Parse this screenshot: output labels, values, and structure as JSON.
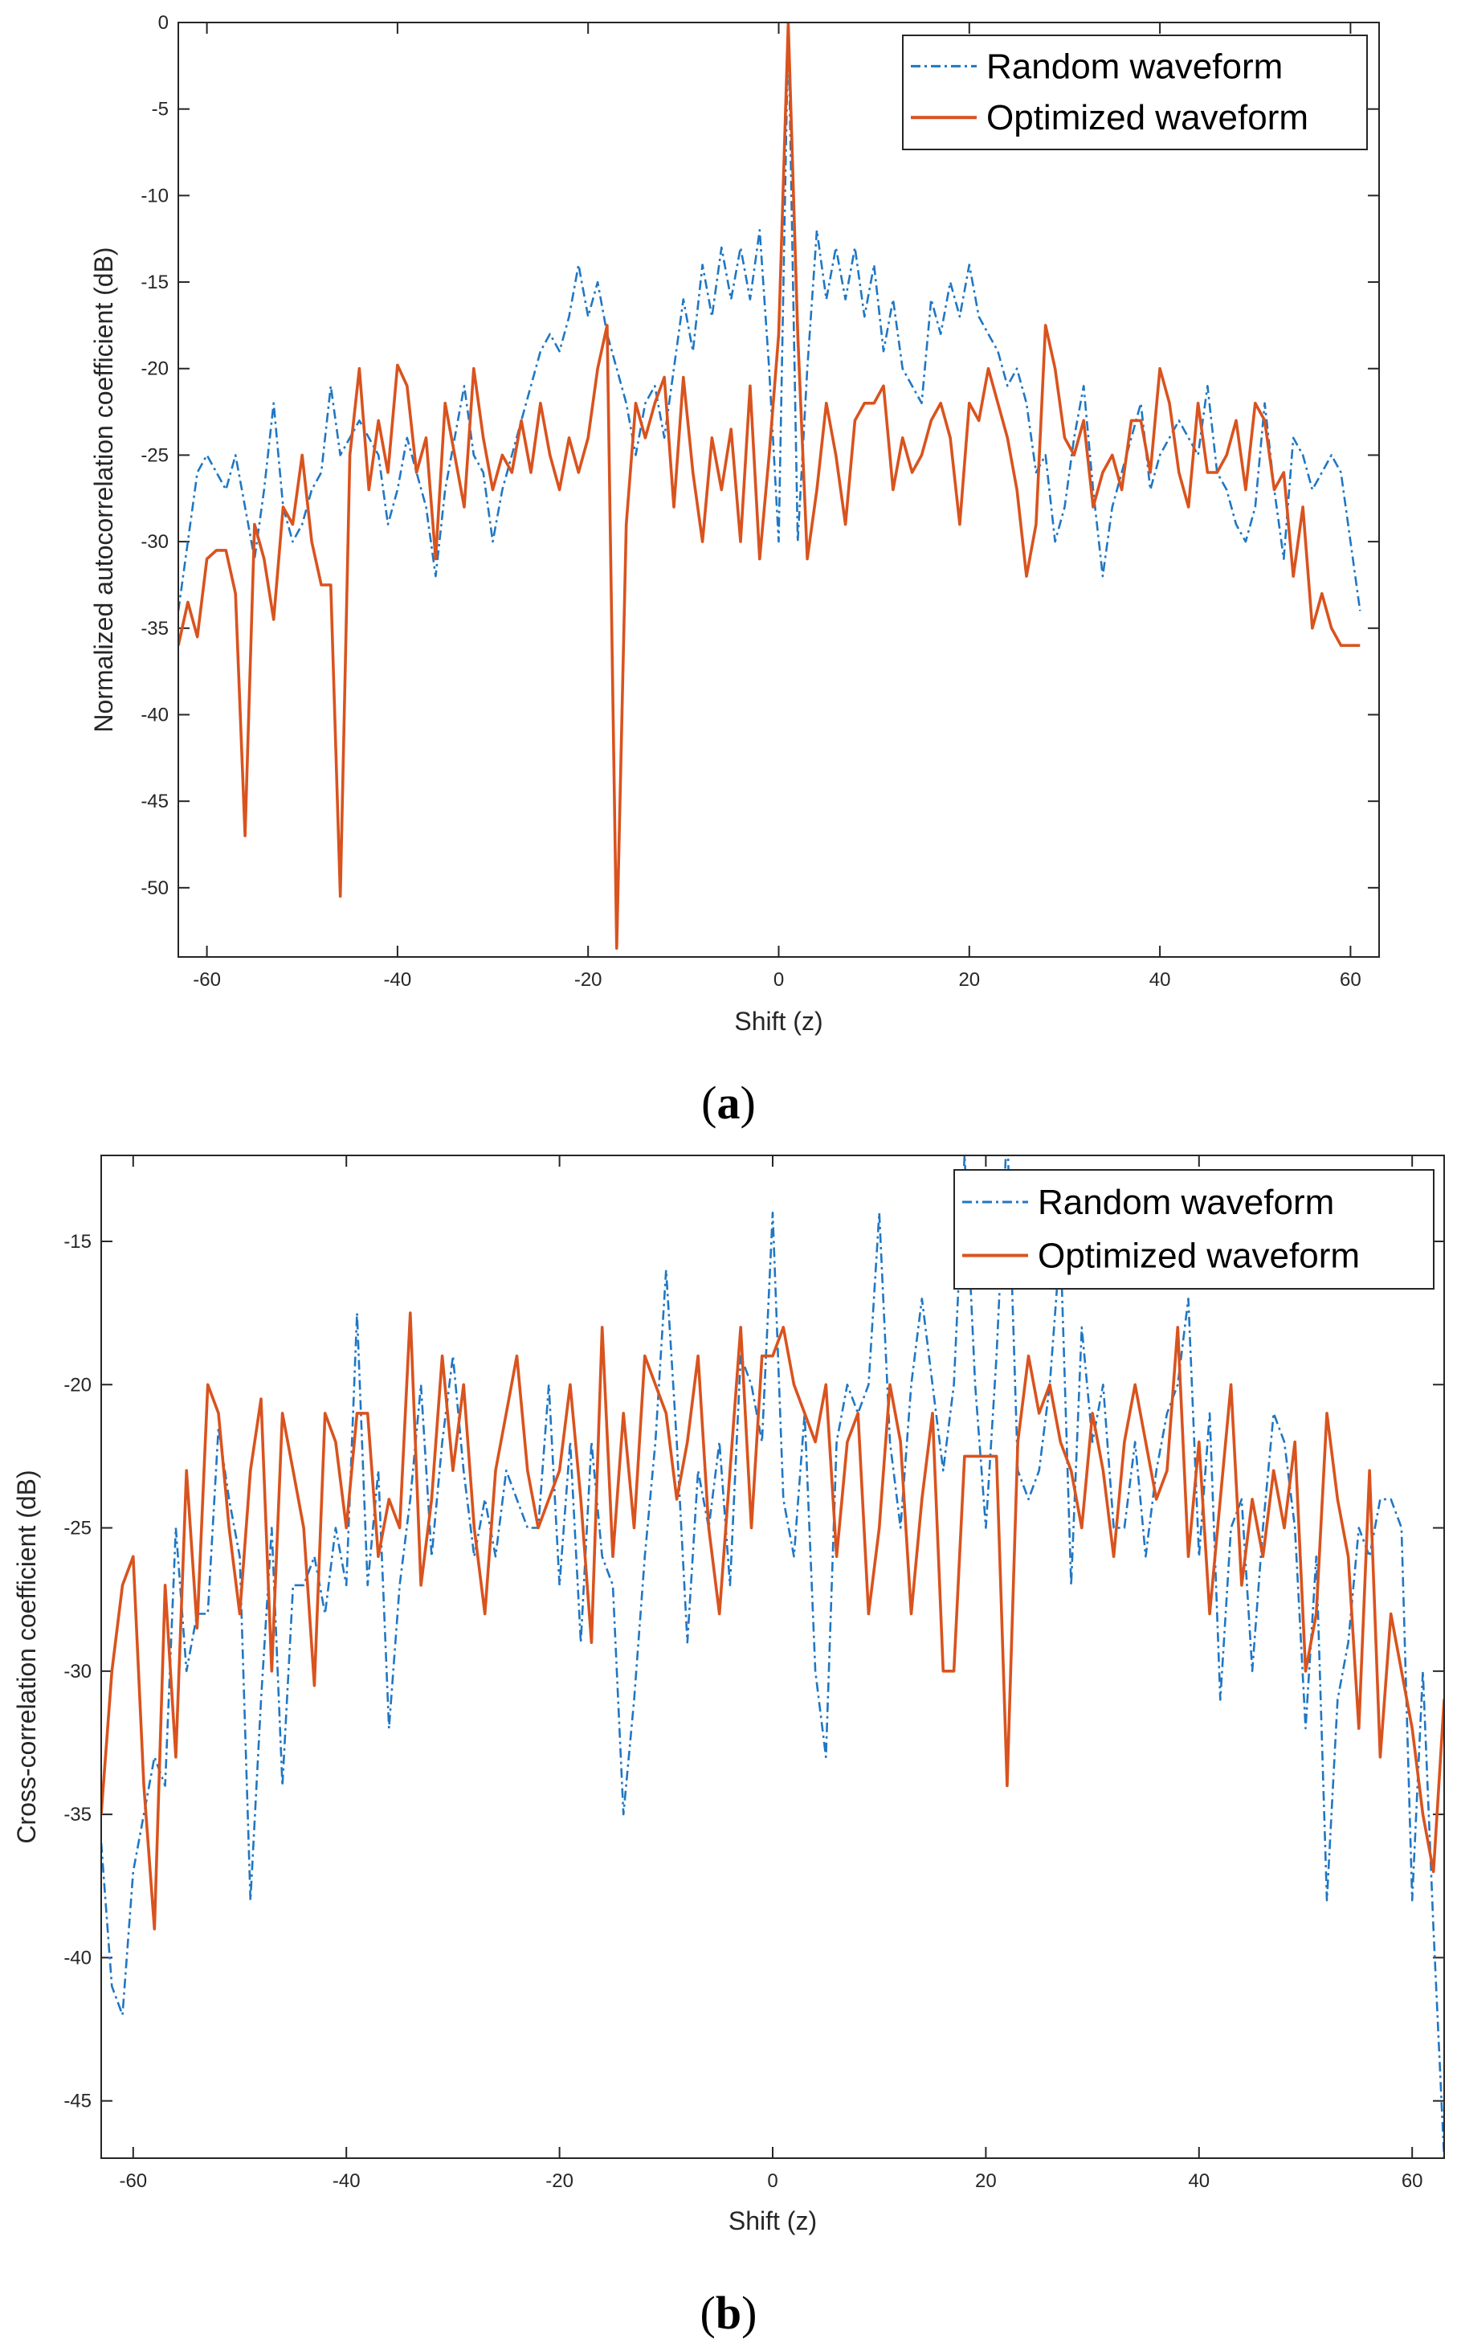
{
  "colors": {
    "random": "#1f77c4",
    "optimized": "#d9531e",
    "axis": "#262626",
    "background": "#ffffff"
  },
  "captions": {
    "a_open": "(",
    "a_letter": "a",
    "a_close": ")",
    "b_open": "(",
    "b_letter": "b",
    "b_close": ")"
  },
  "chart_data": [
    {
      "type": "line",
      "panel": "a",
      "xlabel": "Shift (z)",
      "ylabel": "Normalized autocorrelation coefficient (dB)",
      "xlim": [
        -63,
        63
      ],
      "ylim": [
        -54,
        0
      ],
      "xticks": [
        -60,
        -40,
        -20,
        0,
        20,
        40,
        60
      ],
      "yticks": [
        0,
        -5,
        -10,
        -15,
        -20,
        -25,
        -30,
        -35,
        -40,
        -45,
        -50
      ],
      "xtick_labels": [
        "-60",
        "-40",
        "-20",
        "0",
        "20",
        "40",
        "60"
      ],
      "ytick_labels": [
        "0",
        "-5",
        "-10",
        "-15",
        "-20",
        "-25",
        "-30",
        "-35",
        "-40",
        "-45",
        "-50"
      ],
      "legend_position": "top-right",
      "x_start": -63,
      "x_step": 1,
      "series": [
        {
          "name": "Random waveform",
          "style": "dash-dot",
          "values": [
            -34,
            -30,
            -26,
            -25,
            -26,
            -27,
            -25,
            -28,
            -31,
            -27,
            -22,
            -28,
            -30,
            -29,
            -27,
            -26,
            -21,
            -25,
            -24,
            -23,
            -24,
            -25,
            -29,
            -27,
            -24,
            -26,
            -28,
            -32,
            -27,
            -24,
            -21,
            -25,
            -26,
            -30,
            -27,
            -25,
            -23,
            -21,
            -19,
            -18,
            -19,
            -17,
            -14,
            -17,
            -15,
            -18,
            -20,
            -22,
            -25,
            -22,
            -21,
            -24,
            -20,
            -16,
            -19,
            -14,
            -17,
            -13,
            -16,
            -13,
            -16,
            -12,
            -20,
            -30,
            0,
            -30,
            -20,
            -12,
            -16,
            -13,
            -16,
            -13,
            -17,
            -14,
            -19,
            -16,
            -20,
            -21,
            -22,
            -16,
            -18,
            -15,
            -17,
            -14,
            -17,
            -18,
            -19,
            -21,
            -20,
            -22,
            -26,
            -25,
            -30,
            -28,
            -24,
            -21,
            -27,
            -32,
            -28,
            -26,
            -24,
            -22,
            -27,
            -25,
            -24,
            -23,
            -24,
            -25,
            -21,
            -26,
            -27,
            -29,
            -30,
            -28,
            -22,
            -27,
            -31,
            -24,
            -25,
            -27,
            -26,
            -25,
            -26,
            -30,
            -34
          ]
        },
        {
          "name": "Optimized waveform",
          "style": "solid",
          "values": [
            -36,
            -33.5,
            -35.5,
            -31,
            -30.5,
            -30.5,
            -33,
            -47,
            -29,
            -31,
            -34.5,
            -28,
            -29,
            -25,
            -30,
            -32.5,
            -32.5,
            -50.5,
            -25,
            -20,
            -27,
            -23,
            -26,
            -19.8,
            -21,
            -26,
            -24,
            -31,
            -22,
            -25,
            -28,
            -20,
            -24,
            -27,
            -25,
            -26,
            -23,
            -26,
            -22,
            -25,
            -27,
            -24,
            -26,
            -24,
            -20,
            -17.5,
            -53.5,
            -29,
            -22,
            -24,
            -22,
            -20.5,
            -28,
            -20.5,
            -26,
            -30,
            -24,
            -27,
            -23.5,
            -30,
            -21,
            -31,
            -25,
            -18,
            0,
            -18,
            -31,
            -27,
            -22,
            -25,
            -29,
            -23,
            -22,
            -22,
            -21,
            -27,
            -24,
            -26,
            -25,
            -23,
            -22,
            -24,
            -29,
            -22,
            -23,
            -20,
            -22,
            -24,
            -27,
            -32,
            -29,
            -17.5,
            -20,
            -24,
            -25,
            -23,
            -28,
            -26,
            -25,
            -27,
            -23,
            -23,
            -26,
            -20,
            -22,
            -26,
            -28,
            -22,
            -26,
            -26,
            -25,
            -23,
            -27,
            -22,
            -23,
            -27,
            -26,
            -32,
            -28,
            -35,
            -33,
            -35,
            -36,
            -36,
            -36
          ]
        }
      ]
    },
    {
      "type": "line",
      "panel": "b",
      "xlabel": "Shift (z)",
      "ylabel": "Cross-correlation coefficient (dB)",
      "xlim": [
        -63,
        63
      ],
      "ylim": [
        -47,
        -12
      ],
      "xticks": [
        -60,
        -40,
        -20,
        0,
        20,
        40,
        60
      ],
      "yticks": [
        -15,
        -20,
        -25,
        -30,
        -35,
        -40,
        -45
      ],
      "xtick_labels": [
        "-60",
        "-40",
        "-20",
        "0",
        "20",
        "40",
        "60"
      ],
      "ytick_labels": [
        "-15",
        "-20",
        "-25",
        "-30",
        "-35",
        "-40",
        "-45"
      ],
      "legend_position": "top-right",
      "x_start": -63,
      "x_step": 1,
      "series": [
        {
          "name": "Random waveform",
          "style": "dash-dot",
          "values": [
            -36,
            -41,
            -42,
            -37,
            -35,
            -33,
            -34,
            -25,
            -30,
            -28,
            -28,
            -21.5,
            -24,
            -26,
            -38,
            -31,
            -25,
            -34,
            -27,
            -27,
            -26,
            -28,
            -25,
            -27,
            -17.5,
            -27,
            -23,
            -32,
            -27,
            -24,
            -20,
            -26,
            -22,
            -19,
            -23,
            -26,
            -24,
            -26,
            -23,
            -24,
            -25,
            -25,
            -20,
            -27,
            -22,
            -29,
            -22,
            -26,
            -27,
            -35,
            -31,
            -26,
            -22,
            -16,
            -22,
            -29,
            -23,
            -25,
            -22,
            -27,
            -19,
            -20,
            -22,
            -14,
            -24,
            -26,
            -21,
            -30,
            -33,
            -22,
            -20,
            -21,
            -20,
            -14,
            -22,
            -25,
            -20,
            -17,
            -20,
            -23,
            -20,
            -12,
            -20,
            -25,
            -19,
            -11,
            -23,
            -24,
            -23,
            -20,
            -15,
            -27,
            -18,
            -22,
            -20,
            -25,
            -25,
            -22,
            -26,
            -23,
            -21,
            -20,
            -17,
            -26,
            -21,
            -31,
            -25,
            -24,
            -30,
            -25,
            -21,
            -22,
            -25,
            -32,
            -26,
            -38,
            -31,
            -29,
            -25,
            -26,
            -24,
            -24,
            -25,
            -38,
            -30,
            -39,
            -47,
            -36
          ]
        },
        {
          "name": "Optimized waveform",
          "style": "solid",
          "values": [
            -35,
            -30,
            -27,
            -26,
            -34,
            -39,
            -27,
            -33,
            -23,
            -28.5,
            -20,
            -21,
            -25,
            -28,
            -23,
            -20.5,
            -30,
            -21,
            -23,
            -25,
            -30.5,
            -21,
            -22,
            -25,
            -21,
            -21,
            -26,
            -24,
            -25,
            -17.5,
            -27,
            -24,
            -19,
            -23,
            -20,
            -25,
            -28,
            -23,
            -21,
            -19,
            -23,
            -25,
            -24,
            -23,
            -20,
            -24,
            -29,
            -18,
            -26,
            -21,
            -25,
            -19,
            -20,
            -21,
            -24,
            -22,
            -19,
            -25,
            -28,
            -23,
            -18,
            -25,
            -19,
            -19,
            -18,
            -20,
            -21,
            -22,
            -20,
            -26,
            -22,
            -21,
            -28,
            -25,
            -20,
            -22,
            -28,
            -24,
            -21,
            -30,
            -30,
            -22.5,
            -22.5,
            -22.5,
            -22.5,
            -34,
            -22,
            -19,
            -21,
            -20,
            -22,
            -23,
            -25,
            -21,
            -23,
            -26,
            -22,
            -20,
            -22,
            -24,
            -23,
            -18,
            -26,
            -22,
            -28,
            -24,
            -20,
            -27,
            -24,
            -26,
            -23,
            -25,
            -22,
            -30,
            -28,
            -21,
            -24,
            -26,
            -32,
            -23,
            -33,
            -28,
            -30,
            -32,
            -35,
            -37,
            -31,
            -35
          ]
        }
      ]
    }
  ]
}
